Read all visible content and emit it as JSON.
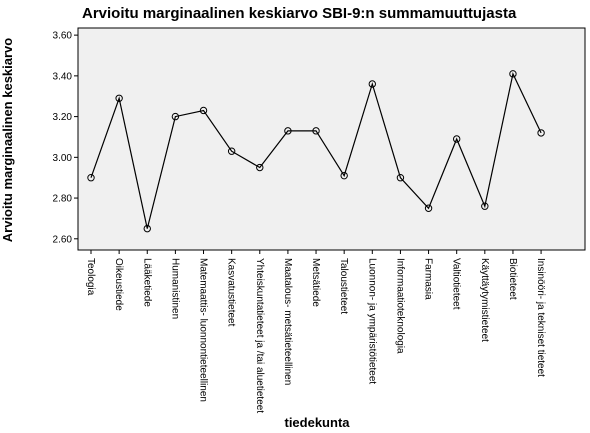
{
  "chart_data": {
    "type": "line",
    "title": "Arvioitu marginaalinen keskiarvo SBI-9:n summamuuttujasta",
    "x_label": "tiedekunta",
    "y_label": "Arvioitu marginaalinen keskiarvo",
    "categories": [
      "Teologia",
      "Oikeustiede",
      "Lääketiede",
      "Humanistinen",
      "Matemaattis- luonnontieteellinen",
      "Kasvatustieteet",
      "Yhteiskuntatieteet ja /tai aluetieteet",
      "Maatalous- metsätieteellinen",
      "Metsätiede",
      "Taloustieteet",
      "Luonnon- ja ympäristötieteet",
      "Informaatioteknologia",
      "Farmasia",
      "Valtiotieteet",
      "Käyttäytymistieteet",
      "Biotieteet",
      "Insinööri- ja tekniset tieteet"
    ],
    "values": [
      2.9,
      3.29,
      2.65,
      3.2,
      3.23,
      3.03,
      2.95,
      3.13,
      3.13,
      2.91,
      3.36,
      2.9,
      2.75,
      3.09,
      2.76,
      3.41,
      3.12
    ],
    "color": "#000000",
    "ylim": [
      2.545,
      3.635
    ],
    "yticks": [
      {
        "value": 2.6,
        "label": "2.60"
      },
      {
        "value": 2.8,
        "label": "2.80"
      },
      {
        "value": 3.0,
        "label": "3.00"
      },
      {
        "value": 3.2,
        "label": "3.20"
      },
      {
        "value": 3.4,
        "label": "3.40"
      },
      {
        "value": 3.6,
        "label": "3.60"
      }
    ],
    "grid": false
  }
}
